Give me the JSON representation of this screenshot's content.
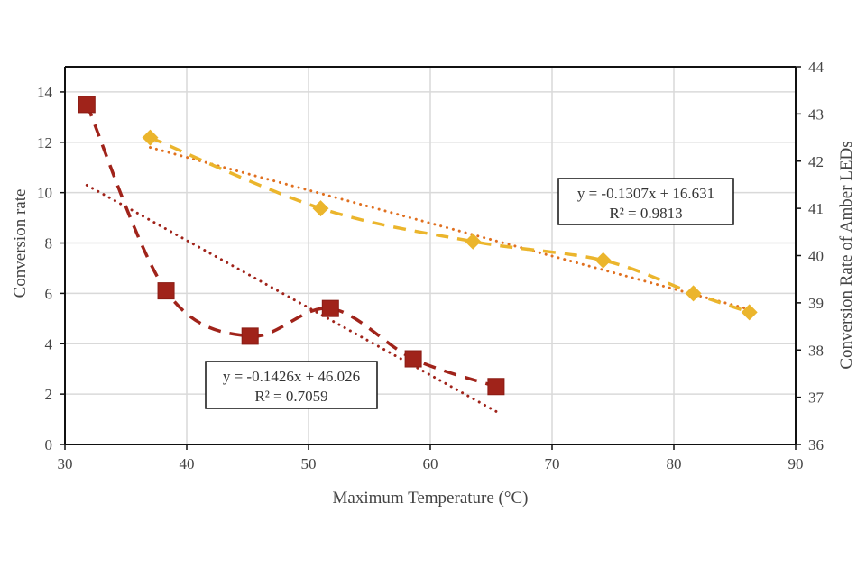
{
  "chart_data": {
    "type": "scatter",
    "title": "",
    "xlabel": "Maximum Temperature (°C)",
    "ylabel": "Conversion rate",
    "ylabel_right": "Conversion Rate of Amber LEDs",
    "xlim": [
      30,
      90
    ],
    "ylim": [
      0,
      15
    ],
    "ylim_right": [
      36,
      44
    ],
    "x_ticks": [
      "30",
      "40",
      "50",
      "60",
      "70",
      "80",
      "90"
    ],
    "y_ticks": [
      "0",
      "2",
      "4",
      "6",
      "8",
      "10",
      "12",
      "14"
    ],
    "y_ticks_right": [
      "36",
      "37",
      "38",
      "39",
      "40",
      "41",
      "42",
      "43",
      "44"
    ],
    "grid": true,
    "legend": "none",
    "series": [
      {
        "name": "Conversion rate",
        "axis": "left",
        "marker": "square",
        "line": "smoothed-dashed",
        "color": "#A0231A",
        "x": [
          31.8,
          38.3,
          45.2,
          51.8,
          58.6,
          65.4
        ],
        "y": [
          13.5,
          6.1,
          4.3,
          5.4,
          3.4,
          2.3
        ]
      },
      {
        "name": "Conversion Rate of Amber LEDs",
        "axis": "right",
        "marker": "diamond",
        "line": "smoothed-dashed",
        "color": "#EBB52C",
        "x": [
          37.0,
          51.0,
          63.5,
          74.2,
          81.6,
          86.2
        ],
        "y": [
          42.5,
          41.0,
          40.3,
          39.9,
          39.2,
          38.8
        ]
      }
    ],
    "trendlines": [
      {
        "name": "Linear trend (red)",
        "color": "#A0231A",
        "axis": "right",
        "slope": -0.1426,
        "intercept": 46.026,
        "x_range": [
          31.8,
          65.4
        ],
        "equation": "y = -0.1426x + 46.026",
        "r_squared": "R² = 0.7059"
      },
      {
        "name": "Linear trend (amber)",
        "color": "#E07020",
        "axis": "left",
        "slope": -0.1307,
        "intercept": 16.631,
        "x_range": [
          37.0,
          86.2
        ],
        "equation": "y = -0.1307x + 16.631",
        "r_squared": "R² = 0.9813"
      }
    ]
  }
}
